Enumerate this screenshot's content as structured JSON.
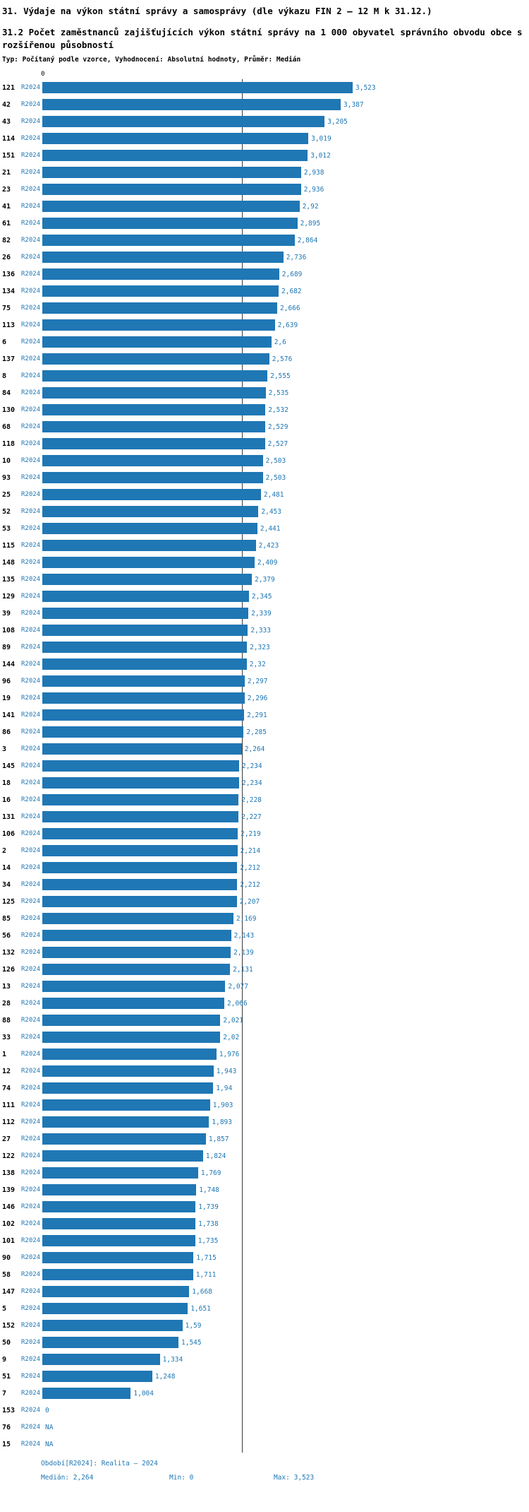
{
  "chart_data": {
    "type": "bar",
    "orientation": "horizontal",
    "title": "31. Výdaje na výkon státní správy a samosprávy (dle výkazu FIN 2 – 12 M k 31.12.)",
    "subtitle": "31.2 Počet zaměstnanců zajišťujících výkon státní správy na 1 000 obyvatel správního obvodu obce s rozšířenou působností",
    "meta": "Typ: Počítaný podle vzorce, Vyhodnocení: Absolutní hodnoty, Průměr: Medián",
    "series_label": "R2024",
    "x_origin_label": "0",
    "xlim": [
      0,
      3.523
    ],
    "median_value": 2.264,
    "bar_color": "#1f77b4",
    "median_line_color": "#3a3a3a",
    "na_label": "NA",
    "footer": {
      "period": "Období[R2024]: Realita – 2024",
      "median": "Medián: 2,264",
      "min": "Min: 0",
      "max": "Max: 3,523"
    },
    "rows": [
      {
        "id": "121",
        "value": 3.523
      },
      {
        "id": "42",
        "value": 3.387
      },
      {
        "id": "43",
        "value": 3.205
      },
      {
        "id": "114",
        "value": 3.019
      },
      {
        "id": "151",
        "value": 3.012
      },
      {
        "id": "21",
        "value": 2.938
      },
      {
        "id": "23",
        "value": 2.936
      },
      {
        "id": "41",
        "value": 2.92
      },
      {
        "id": "61",
        "value": 2.895
      },
      {
        "id": "82",
        "value": 2.864
      },
      {
        "id": "26",
        "value": 2.736
      },
      {
        "id": "136",
        "value": 2.689
      },
      {
        "id": "134",
        "value": 2.682
      },
      {
        "id": "75",
        "value": 2.666
      },
      {
        "id": "113",
        "value": 2.639
      },
      {
        "id": "6",
        "value": 2.6
      },
      {
        "id": "137",
        "value": 2.576
      },
      {
        "id": "8",
        "value": 2.555
      },
      {
        "id": "84",
        "value": 2.535
      },
      {
        "id": "130",
        "value": 2.532
      },
      {
        "id": "68",
        "value": 2.529
      },
      {
        "id": "118",
        "value": 2.527
      },
      {
        "id": "10",
        "value": 2.503
      },
      {
        "id": "93",
        "value": 2.503
      },
      {
        "id": "25",
        "value": 2.481
      },
      {
        "id": "52",
        "value": 2.453
      },
      {
        "id": "53",
        "value": 2.441
      },
      {
        "id": "115",
        "value": 2.423
      },
      {
        "id": "148",
        "value": 2.409
      },
      {
        "id": "135",
        "value": 2.379
      },
      {
        "id": "129",
        "value": 2.345
      },
      {
        "id": "39",
        "value": 2.339
      },
      {
        "id": "108",
        "value": 2.333
      },
      {
        "id": "89",
        "value": 2.323
      },
      {
        "id": "144",
        "value": 2.32
      },
      {
        "id": "96",
        "value": 2.297
      },
      {
        "id": "19",
        "value": 2.296
      },
      {
        "id": "141",
        "value": 2.291
      },
      {
        "id": "86",
        "value": 2.285
      },
      {
        "id": "3",
        "value": 2.264
      },
      {
        "id": "145",
        "value": 2.234
      },
      {
        "id": "18",
        "value": 2.234
      },
      {
        "id": "16",
        "value": 2.228
      },
      {
        "id": "131",
        "value": 2.227
      },
      {
        "id": "106",
        "value": 2.219
      },
      {
        "id": "2",
        "value": 2.214
      },
      {
        "id": "14",
        "value": 2.212
      },
      {
        "id": "34",
        "value": 2.212
      },
      {
        "id": "125",
        "value": 2.207
      },
      {
        "id": "85",
        "value": 2.169
      },
      {
        "id": "56",
        "value": 2.143
      },
      {
        "id": "132",
        "value": 2.139
      },
      {
        "id": "126",
        "value": 2.131
      },
      {
        "id": "13",
        "value": 2.077
      },
      {
        "id": "28",
        "value": 2.066
      },
      {
        "id": "88",
        "value": 2.021
      },
      {
        "id": "33",
        "value": 2.02
      },
      {
        "id": "1",
        "value": 1.976
      },
      {
        "id": "12",
        "value": 1.943
      },
      {
        "id": "74",
        "value": 1.94
      },
      {
        "id": "111",
        "value": 1.903
      },
      {
        "id": "112",
        "value": 1.893
      },
      {
        "id": "27",
        "value": 1.857
      },
      {
        "id": "122",
        "value": 1.824
      },
      {
        "id": "138",
        "value": 1.769
      },
      {
        "id": "139",
        "value": 1.748
      },
      {
        "id": "146",
        "value": 1.739
      },
      {
        "id": "102",
        "value": 1.738
      },
      {
        "id": "101",
        "value": 1.735
      },
      {
        "id": "90",
        "value": 1.715
      },
      {
        "id": "58",
        "value": 1.711
      },
      {
        "id": "147",
        "value": 1.668
      },
      {
        "id": "5",
        "value": 1.651
      },
      {
        "id": "152",
        "value": 1.59
      },
      {
        "id": "50",
        "value": 1.545
      },
      {
        "id": "9",
        "value": 1.334
      },
      {
        "id": "51",
        "value": 1.248
      },
      {
        "id": "7",
        "value": 1.004
      },
      {
        "id": "153",
        "value": 0
      },
      {
        "id": "76",
        "value": null
      },
      {
        "id": "15",
        "value": null
      }
    ]
  }
}
